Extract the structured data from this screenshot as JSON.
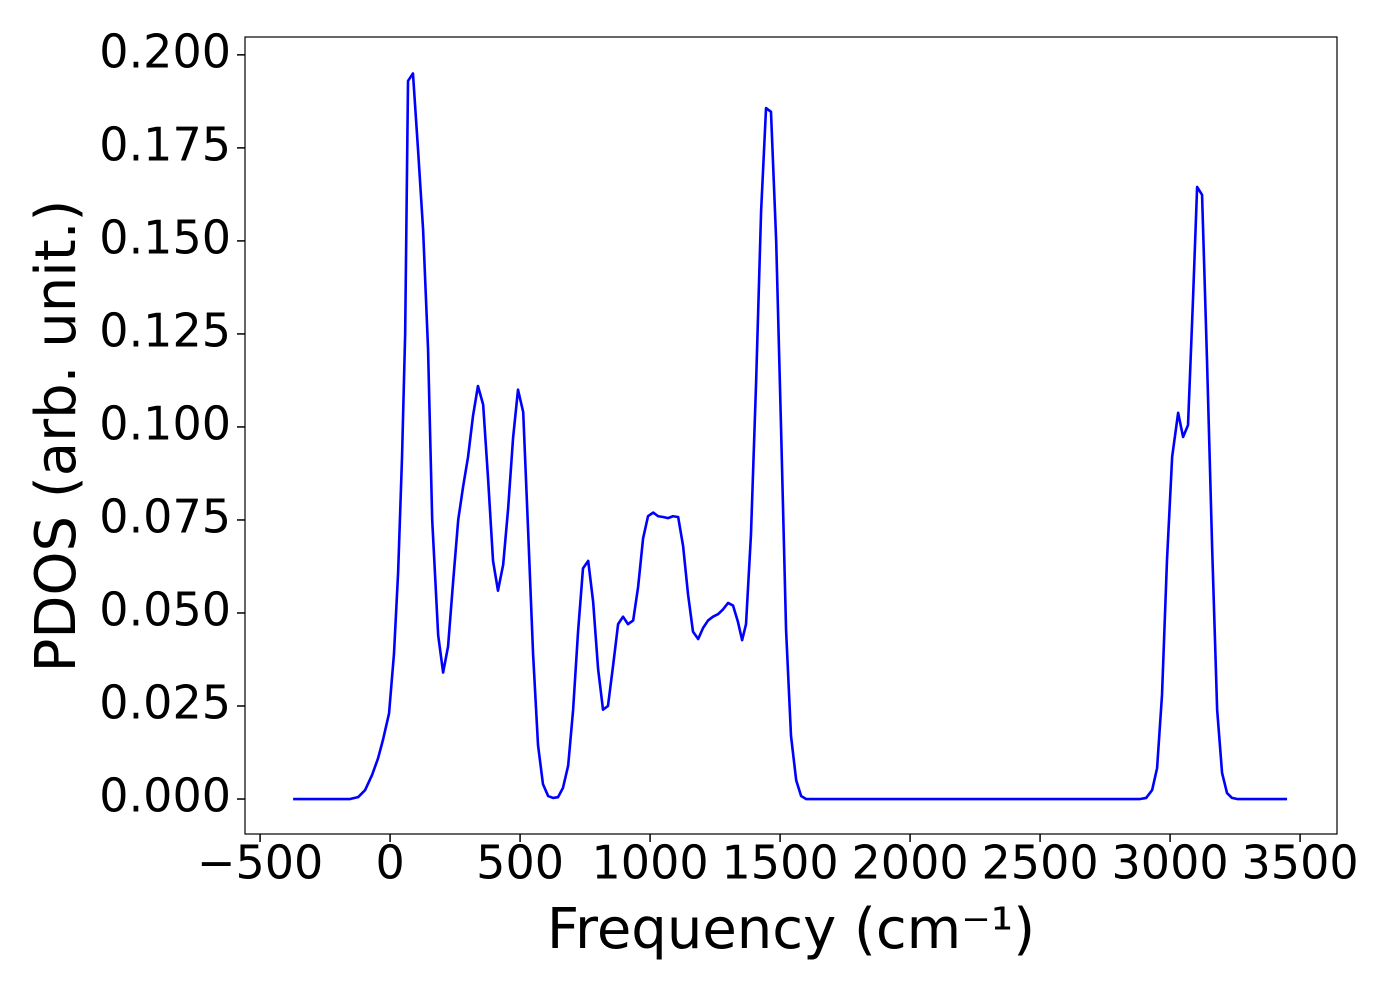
{
  "chart_data": {
    "type": "line",
    "xlabel": "Frequency (cm⁻¹)",
    "ylabel": "PDOS (arb. unit.)",
    "xlim": [
      -558,
      3642
    ],
    "ylim": [
      -0.0094,
      0.2048
    ],
    "xticks": [
      {
        "value": -500,
        "label": "−500"
      },
      0,
      500,
      1000,
      1500,
      2000,
      2500,
      3000,
      3500
    ],
    "yticks": [
      {
        "value": 0,
        "label": "0.000"
      },
      {
        "value": 0.025,
        "label": "0.025"
      },
      {
        "value": 0.05,
        "label": "0.050"
      },
      {
        "value": 0.075,
        "label": "0.075"
      },
      {
        "value": 0.1,
        "label": "0.100"
      },
      {
        "value": 0.125,
        "label": "0.125"
      },
      {
        "value": 0.15,
        "label": "0.150"
      },
      {
        "value": 0.175,
        "label": "0.175"
      },
      {
        "value": 0.2,
        "label": "0.200"
      }
    ],
    "grid": false,
    "color": "#0000ff",
    "x": [
      -373,
      -154,
      -123,
      -96,
      -69,
      -46,
      -27,
      -4,
      15,
      31,
      46,
      58,
      69,
      88,
      108,
      127,
      146,
      162,
      185,
      204,
      223,
      242,
      262,
      281,
      300,
      319,
      338,
      358,
      377,
      396,
      415,
      435,
      454,
      473,
      492,
      512,
      531,
      550,
      569,
      588,
      608,
      627,
      646,
      665,
      685,
      704,
      723,
      742,
      762,
      781,
      800,
      819,
      838,
      858,
      877,
      896,
      915,
      935,
      954,
      973,
      992,
      1012,
      1031,
      1050,
      1069,
      1088,
      1108,
      1127,
      1146,
      1165,
      1185,
      1204,
      1223,
      1242,
      1262,
      1281,
      1300,
      1319,
      1338,
      1354,
      1369,
      1388,
      1408,
      1427,
      1446,
      1465,
      1485,
      1504,
      1523,
      1542,
      1562,
      1581,
      1600,
      2885,
      2908,
      2931,
      2950,
      2969,
      2988,
      3008,
      3031,
      3050,
      3069,
      3088,
      3104,
      3123,
      3142,
      3162,
      3181,
      3200,
      3219,
      3238,
      3258,
      3450
    ],
    "values": [
      0,
      0,
      0.0005,
      0.0024,
      0.0065,
      0.011,
      0.016,
      0.023,
      0.039,
      0.061,
      0.092,
      0.125,
      0.193,
      0.195,
      0.174,
      0.153,
      0.121,
      0.075,
      0.044,
      0.034,
      0.041,
      0.058,
      0.075,
      0.084,
      0.092,
      0.103,
      0.111,
      0.106,
      0.086,
      0.064,
      0.056,
      0.063,
      0.078,
      0.097,
      0.11,
      0.104,
      0.072,
      0.039,
      0.0145,
      0.004,
      0.0008,
      0.0003,
      0.0005,
      0.003,
      0.009,
      0.024,
      0.045,
      0.062,
      0.064,
      0.053,
      0.035,
      0.024,
      0.025,
      0.036,
      0.047,
      0.049,
      0.047,
      0.048,
      0.057,
      0.07,
      0.076,
      0.077,
      0.076,
      0.0758,
      0.0755,
      0.076,
      0.0758,
      0.068,
      0.055,
      0.045,
      0.043,
      0.046,
      0.048,
      0.049,
      0.0497,
      0.051,
      0.0527,
      0.052,
      0.0476,
      0.0427,
      0.047,
      0.071,
      0.1125,
      0.158,
      0.1857,
      0.1847,
      0.15,
      0.099,
      0.0455,
      0.017,
      0.005,
      0.0008,
      0,
      0,
      0.0003,
      0.0024,
      0.0083,
      0.028,
      0.064,
      0.092,
      0.1038,
      0.0973,
      0.1005,
      0.134,
      0.1645,
      0.1624,
      0.118,
      0.067,
      0.024,
      0.007,
      0.0016,
      0.0003,
      0,
      0
    ]
  }
}
